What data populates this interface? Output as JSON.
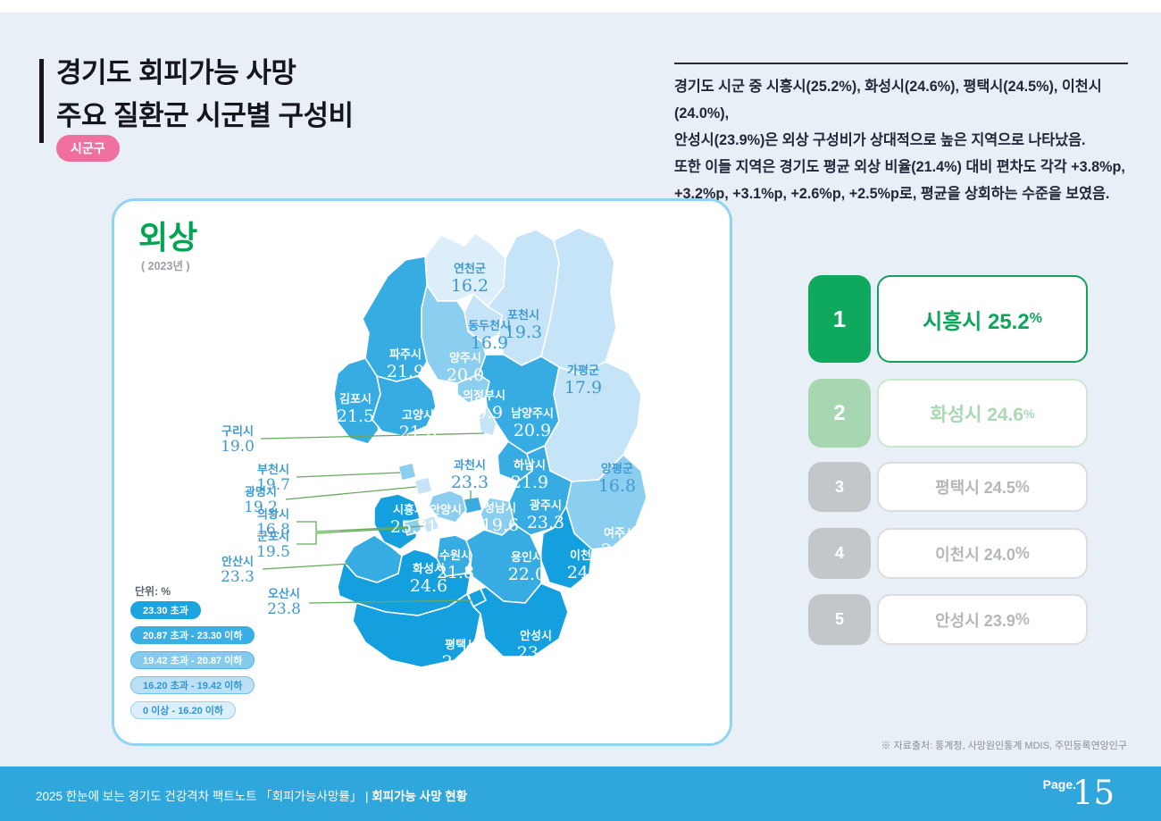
{
  "header": {
    "title": "경기도 회피가능 사망\n주요 질환군 시군별 구성비",
    "badge": "시군구",
    "summary": "경기도 시군 중 시흥시(25.2%), 화성시(24.6%), 평택시(24.5%), 이천시(24.0%),\n안성시(23.9%)은 외상 구성비가 상대적으로 높은 지역으로 나타났음.\n또한 이들 지역은 경기도 평균 외상 비율(21.4%) 대비 편차도 각각 +3.8%p,\n+3.2%p, +3.1%p, +2.6%p, +2.5%p로, 평균을 상회하는 수준을 보였음."
  },
  "palette": {
    "b1": "#149fdf",
    "b2": "#36ace3",
    "b3": "#8bcef0",
    "b4": "#c6e4f8",
    "b5": "#ddeefb",
    "map_label_blue": "#3e9ad2",
    "callout_line": "#68a85f",
    "legend_bg": [
      "#1ba4e0",
      "#3aafe4",
      "#85cbee",
      "#bce1f7",
      "#dceffb"
    ],
    "legend_border": [
      "#1ba4e0",
      "#3aafe4",
      "#4fb5e6",
      "#6fc2eb",
      "#9bd4f2"
    ],
    "legend_text_dark": "#2e96d5",
    "green": "#00a551",
    "pink": "#ef6f9f",
    "footer_blue": "#2fa7dc"
  },
  "map_card": {
    "title": "외상",
    "year": "( 2023년 )",
    "unit_label": "단위: %"
  },
  "chart_data": {
    "type": "choropleth",
    "title": "외상",
    "subtitle": "( 2023년 )",
    "unit": "%",
    "legend_breaks": [
      "23.30 초과",
      "20.87 초과 - 23.30 이하",
      "19.42 초과 - 20.87 이하",
      "16.20 초과 - 19.42 이하",
      "0 이상 - 16.20 이하"
    ],
    "regions": [
      {
        "id": "yeoncheon",
        "name": "연천군",
        "value": "16.2",
        "bucket": "b5",
        "lc": "b"
      },
      {
        "id": "pocheon",
        "name": "포천시",
        "value": "19.3",
        "bucket": "b4",
        "lc": "b"
      },
      {
        "id": "gapyeong",
        "name": "가평군",
        "value": "17.9",
        "bucket": "b4",
        "lc": "b"
      },
      {
        "id": "dongducheon",
        "name": "동두천시",
        "value": "16.9",
        "bucket": "b4",
        "lc": "b"
      },
      {
        "id": "yangju",
        "name": "양주시",
        "value": "20.0",
        "bucket": "b3",
        "lc": "w"
      },
      {
        "id": "paju",
        "name": "파주시",
        "value": "21.9",
        "bucket": "b2",
        "lc": "w"
      },
      {
        "id": "gimpo",
        "name": "김포시",
        "value": "21.5",
        "bucket": "b2",
        "lc": "w"
      },
      {
        "id": "goyang",
        "name": "고양시",
        "value": "21.6",
        "bucket": "b2",
        "lc": "w"
      },
      {
        "id": "uijeongbu",
        "name": "의정부시",
        "value": "19.9",
        "bucket": "b3",
        "lc": "w"
      },
      {
        "id": "namyangju",
        "name": "남양주시",
        "value": "20.9",
        "bucket": "b2",
        "lc": "w"
      },
      {
        "id": "guri",
        "name": "구리시",
        "value": "19.0",
        "bucket": "b4",
        "lc": "b"
      },
      {
        "id": "hanam",
        "name": "하남시",
        "value": "21.9",
        "bucket": "b2",
        "lc": "w"
      },
      {
        "id": "yangpyeong",
        "name": "양평군",
        "value": "16.8",
        "bucket": "b4",
        "lc": "b"
      },
      {
        "id": "gwangju",
        "name": "광주시",
        "value": "23.3",
        "bucket": "b2",
        "lc": "w"
      },
      {
        "id": "yeoju",
        "name": "여주시",
        "value": "20.0",
        "bucket": "b3",
        "lc": "w"
      },
      {
        "id": "icheon",
        "name": "이천시",
        "value": "24.0",
        "bucket": "b1",
        "lc": "w"
      },
      {
        "id": "seongnam",
        "name": "성남시",
        "value": "19.6",
        "bucket": "b3",
        "lc": "w"
      },
      {
        "id": "gwacheon",
        "name": "과천시",
        "value": "23.3",
        "bucket": "b2",
        "lc": "b"
      },
      {
        "id": "anyang",
        "name": "안양시",
        "value": "19.6",
        "bucket": "b3",
        "lc": "w"
      },
      {
        "id": "bucheon",
        "name": "부천시",
        "value": "19.7",
        "bucket": "b3",
        "lc": "b"
      },
      {
        "id": "gwangmyeong",
        "name": "광명시",
        "value": "19.2",
        "bucket": "b4",
        "lc": "b"
      },
      {
        "id": "siheung",
        "name": "시흥시",
        "value": "25.2",
        "bucket": "b1",
        "lc": "w"
      },
      {
        "id": "uiwang",
        "name": "의왕시",
        "value": "16.8",
        "bucket": "b4",
        "lc": "b"
      },
      {
        "id": "gunpo",
        "name": "군포시",
        "value": "19.5",
        "bucket": "b3",
        "lc": "b"
      },
      {
        "id": "ansan",
        "name": "안산시",
        "value": "23.3",
        "bucket": "b2",
        "lc": "b"
      },
      {
        "id": "suwon",
        "name": "수원시",
        "value": "21.8",
        "bucket": "b2",
        "lc": "w"
      },
      {
        "id": "yongin",
        "name": "용인시",
        "value": "22.0",
        "bucket": "b2",
        "lc": "w"
      },
      {
        "id": "hwaseong",
        "name": "화성시",
        "value": "24.6",
        "bucket": "b1",
        "lc": "w"
      },
      {
        "id": "osan",
        "name": "오산시",
        "value": "23.8",
        "bucket": "b1",
        "lc": "b"
      },
      {
        "id": "pyeongtaek",
        "name": "평택시",
        "value": "24.5",
        "bucket": "b1",
        "lc": "w"
      },
      {
        "id": "anseong",
        "name": "안성시",
        "value": "23.9",
        "bucket": "b1",
        "lc": "w"
      }
    ]
  },
  "ranking": [
    {
      "rank": "1",
      "text": "시흥시 25.2",
      "pct": "%",
      "tone": "t1"
    },
    {
      "rank": "2",
      "text": "화성시 24.6",
      "pct": "%",
      "tone": "t2"
    },
    {
      "rank": "3",
      "text": "평택시 24.5",
      "pct": "%",
      "tone": "t3"
    },
    {
      "rank": "4",
      "text": "이천시 24.0",
      "pct": "%",
      "tone": "t3"
    },
    {
      "rank": "5",
      "text": "안성시 23.9",
      "pct": "%",
      "tone": "t3"
    }
  ],
  "source": "※ 자료출처: 통계청, 사망원인통계 MDIS, 주민등록연앙인구",
  "footer": {
    "left_normal": "2025 한눈에 보는 경기도 건강격차 팩트노트 「회피가능사망률」",
    "divider": "|",
    "left_bold": "회피가능 사망 현황",
    "page_label": "Page.",
    "page_number": "15"
  }
}
